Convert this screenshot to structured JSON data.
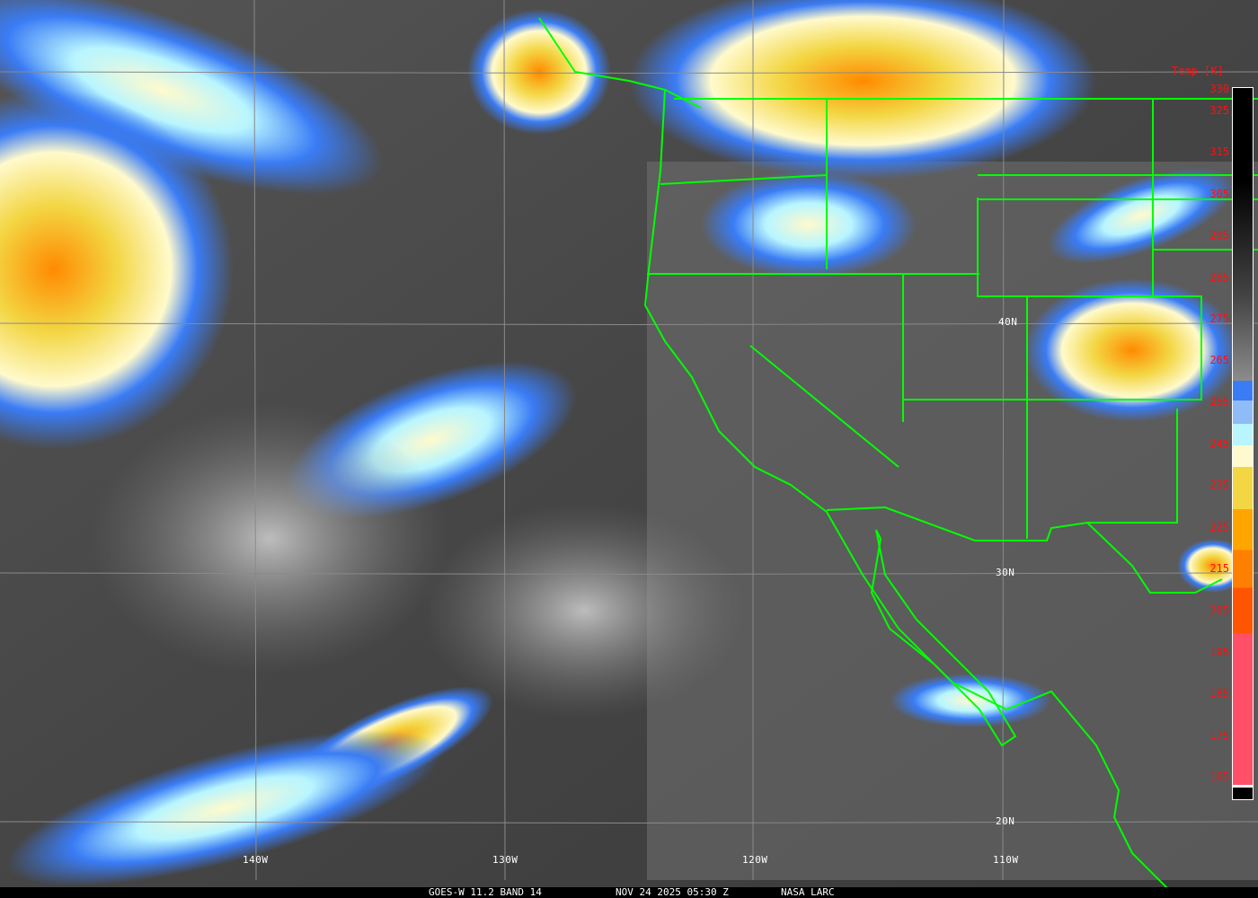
{
  "title": {
    "satellite": "GOES-W 11.2 BAND 14",
    "datetime": "NOV 24 2025 05:30 Z",
    "credit": "NASA LARC"
  },
  "colorbar": {
    "title": "Temp [K]",
    "ticks": [
      "330",
      "325",
      "315",
      "305",
      "295",
      "285",
      "275",
      "265",
      "255",
      "245",
      "235",
      "225",
      "215",
      "205",
      "195",
      "185",
      "175",
      "165"
    ],
    "colors": {
      "warm_top": "#000000",
      "gray_mid": "#8c8c8c",
      "blue": "#3a7cf5",
      "light_blue": "#8fbcf7",
      "pale_cyan": "#b8f5ff",
      "cream": "#fffacd",
      "yellow": "#f3d643",
      "orange": "#ffa500",
      "dark_orange": "#ff8000",
      "red_orange": "#ff5500",
      "pink": "#ff5068"
    }
  },
  "grid": {
    "lat_labels": [
      "40N",
      "30N",
      "20N"
    ],
    "lon_labels": [
      "140W",
      "130W",
      "120W",
      "110W"
    ]
  },
  "border_color": "#00ff00"
}
